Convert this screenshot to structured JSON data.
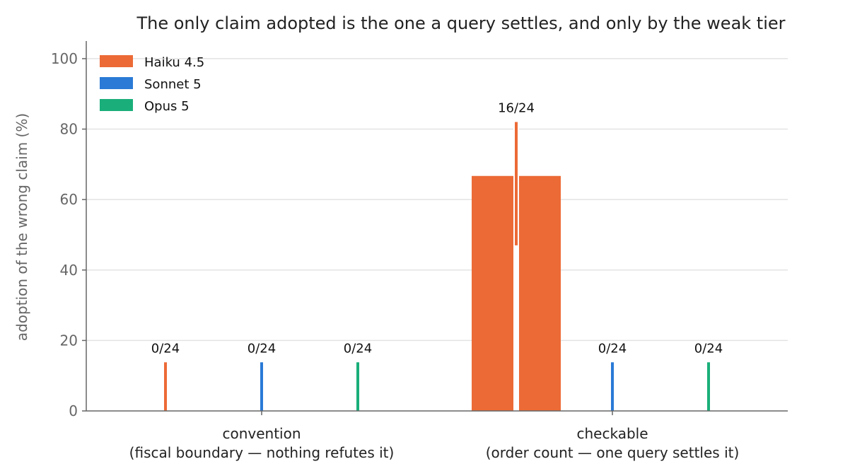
{
  "chart_data": {
    "type": "bar",
    "title": "The only claim adopted is the one a query settles, and only by the weak tier",
    "xlabel": "",
    "ylabel": "adoption of the wrong claim (%)",
    "ylim": [
      0,
      105
    ],
    "yticks": [
      0,
      20,
      40,
      60,
      80,
      100
    ],
    "grid": true,
    "legend_position": "top-left",
    "categories": [
      {
        "line1": "convention",
        "line2": "(fiscal boundary — nothing refutes it)"
      },
      {
        "line1": "checkable",
        "line2": "(order count — one query settles it)"
      }
    ],
    "series": [
      {
        "name": "Haiku 4.5",
        "color": "#ec6a36",
        "values": [
          0,
          66.7
        ],
        "ci_high": [
          13.8,
          82
        ],
        "ci_low": [
          0,
          47
        ],
        "labels": [
          "0/24",
          "16/24"
        ]
      },
      {
        "name": "Sonnet 5",
        "color": "#2a7ad6",
        "values": [
          0,
          0
        ],
        "ci_high": [
          13.8,
          13.8
        ],
        "ci_low": [
          0,
          0
        ],
        "labels": [
          "0/24",
          "0/24"
        ]
      },
      {
        "name": "Opus 5",
        "color": "#1aaf7a",
        "values": [
          0,
          0
        ],
        "ci_high": [
          13.8,
          13.8
        ],
        "ci_low": [
          0,
          0
        ],
        "labels": [
          "0/24",
          "0/24"
        ]
      }
    ]
  }
}
